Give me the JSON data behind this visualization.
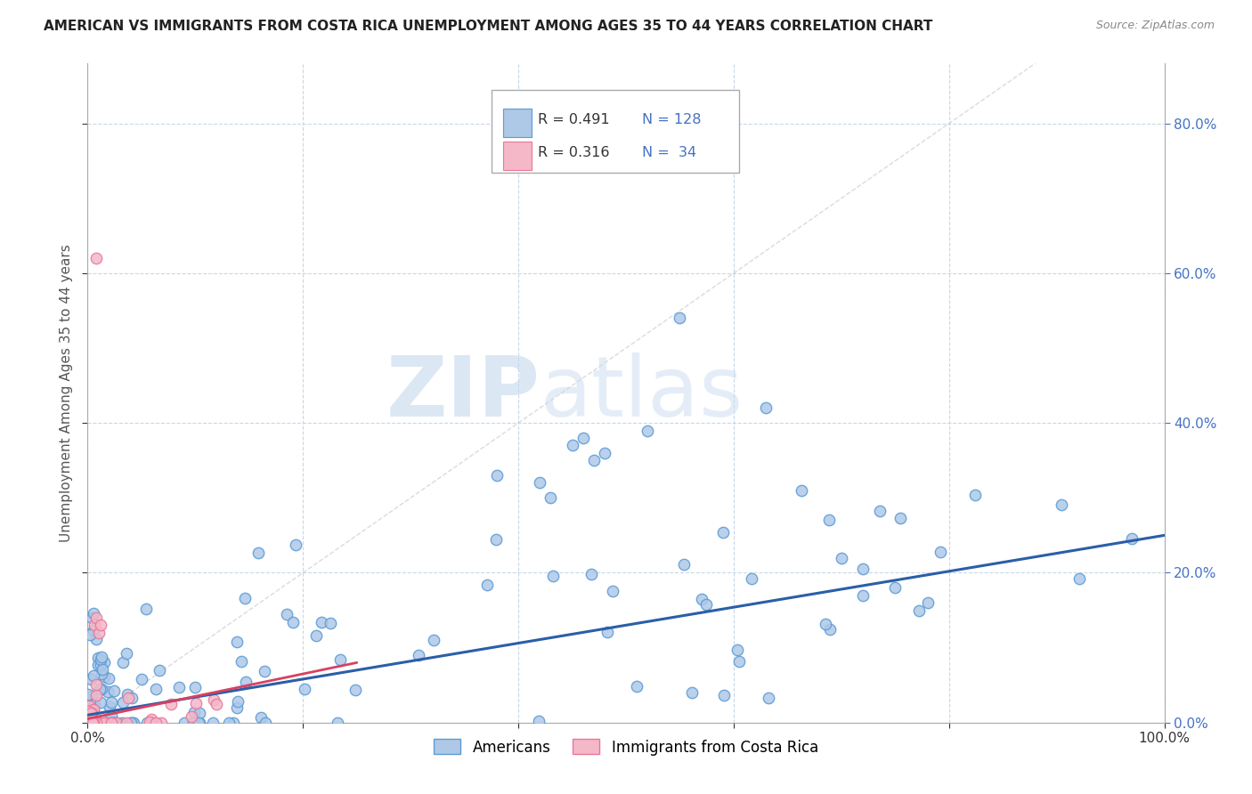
{
  "title": "AMERICAN VS IMMIGRANTS FROM COSTA RICA UNEMPLOYMENT AMONG AGES 35 TO 44 YEARS CORRELATION CHART",
  "source": "Source: ZipAtlas.com",
  "ylabel": "Unemployment Among Ages 35 to 44 years",
  "xlim": [
    0,
    1.0
  ],
  "ylim": [
    0,
    0.88
  ],
  "xticks": [
    0.0,
    0.2,
    0.4,
    0.6,
    0.8,
    1.0
  ],
  "yticks": [
    0.0,
    0.2,
    0.4,
    0.6,
    0.8
  ],
  "xtick_labels_show": [
    "0.0%",
    "",
    "",
    "",
    "",
    "100.0%"
  ],
  "ytick_labels_left": [
    "",
    "",
    "",
    "",
    ""
  ],
  "ytick_labels_right": [
    "0.0%",
    "20.0%",
    "40.0%",
    "60.0%",
    "80.0%"
  ],
  "legend_r1": "R = 0.491",
  "legend_n1": "N = 128",
  "legend_r2": "R = 0.316",
  "legend_n2": "N =  34",
  "color_americans": "#aec8e8",
  "color_costa_rica": "#f4b8c8",
  "color_edge_americans": "#5b9bd5",
  "color_edge_costa_rica": "#e87899",
  "color_trend_americans": "#2b5ea8",
  "color_trend_costa_rica": "#d94060",
  "color_diagonal": "#cccccc",
  "watermark_zip": "ZIP",
  "watermark_atlas": "atlas",
  "watermark_color": "#d8e4f0",
  "background_color": "#ffffff",
  "grid_color": "#c8d8e8",
  "legend_box_color": "#e8f0f8",
  "seed": 2023
}
